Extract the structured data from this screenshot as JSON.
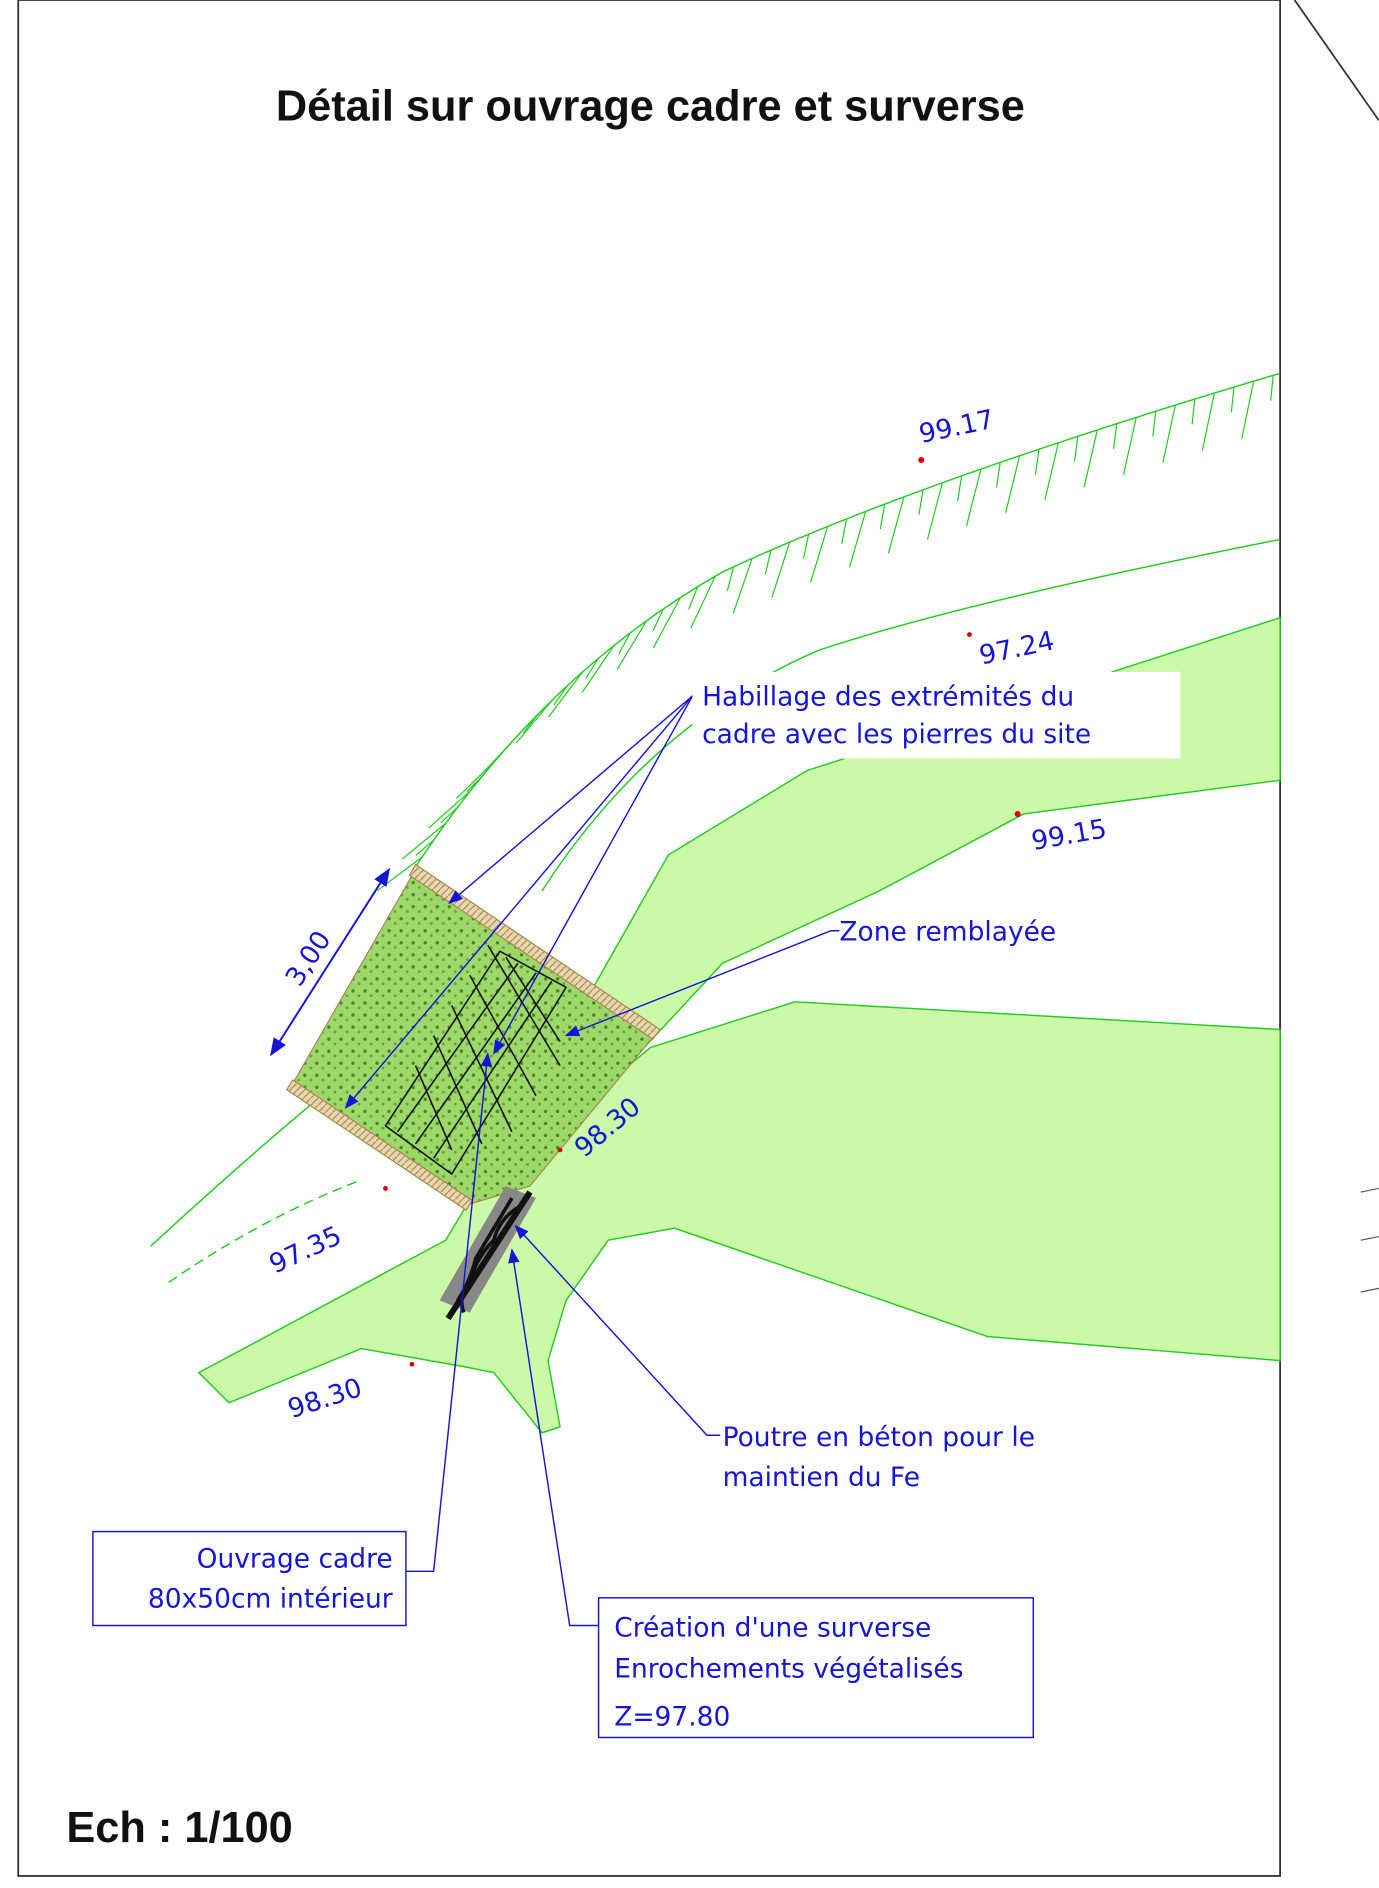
{
  "title": "Détail sur ouvrage cadre et surverse",
  "scale": "Ech : 1/100",
  "dimension": "3,00",
  "elevations": [
    "99.17",
    "97.24",
    "99.15",
    "98.30",
    "97.35",
    "98.30"
  ],
  "annotations": [
    {
      "lines": [
        "Habillage des extrémités du",
        "cadre avec les pierres du site"
      ]
    },
    {
      "lines": [
        "Zone remblayée"
      ]
    },
    {
      "lines": [
        "Poutre en béton pour le",
        "maintien du Fe"
      ]
    },
    {
      "lines": [
        "Ouvrage cadre",
        "80x50cm intérieur"
      ]
    },
    {
      "lines": [
        "Création d'une surverse",
        "Enrochements végétalisés",
        "Z=97.80"
      ]
    }
  ]
}
